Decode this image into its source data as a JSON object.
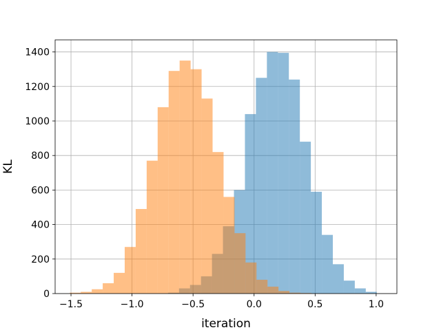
{
  "chart_data": {
    "type": "histogram",
    "title": "",
    "xlabel": "iteration",
    "ylabel": "KL",
    "xlim": [
      -1.63,
      1.17
    ],
    "ylim": [
      0,
      1470
    ],
    "xticks": [
      -1.5,
      -1.0,
      -0.5,
      0.0,
      0.5,
      1.0
    ],
    "xtick_labels": [
      "−1.5",
      "−1.0",
      "−0.5",
      "0.0",
      "0.5",
      "1.0"
    ],
    "yticks": [
      0,
      200,
      400,
      600,
      800,
      1000,
      1200,
      1400
    ],
    "ytick_labels": [
      "0",
      "200",
      "400",
      "600",
      "800",
      "1000",
      "1200",
      "1400"
    ],
    "grid": true,
    "legend": false,
    "series": [
      {
        "color": "#1f77b4",
        "alpha": 0.5,
        "bin_edges": [
          -0.705,
          -0.615,
          -0.525,
          -0.435,
          -0.345,
          -0.255,
          -0.165,
          -0.075,
          0.015,
          0.105,
          0.195,
          0.285,
          0.375,
          0.465,
          0.555,
          0.645,
          0.735,
          0.825,
          0.915,
          1.005
        ],
        "counts": [
          5,
          30,
          50,
          100,
          230,
          390,
          600,
          1040,
          1250,
          1400,
          1395,
          1240,
          880,
          590,
          340,
          170,
          75,
          30,
          10
        ]
      },
      {
        "color": "#ff7f0e",
        "alpha": 0.5,
        "bin_edges": [
          -1.51,
          -1.42,
          -1.33,
          -1.24,
          -1.15,
          -1.06,
          -0.97,
          -0.88,
          -0.79,
          -0.7,
          -0.61,
          -0.52,
          -0.43,
          -0.34,
          -0.25,
          -0.16,
          -0.07,
          0.02,
          0.11,
          0.2,
          0.29,
          0.38,
          0.47
        ],
        "counts": [
          5,
          10,
          25,
          60,
          120,
          270,
          490,
          770,
          1080,
          1290,
          1350,
          1300,
          1130,
          820,
          560,
          350,
          180,
          80,
          40,
          15,
          5,
          3
        ]
      }
    ]
  }
}
